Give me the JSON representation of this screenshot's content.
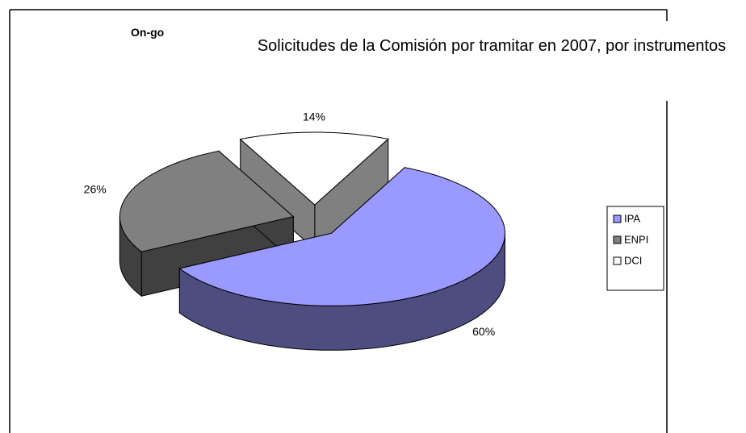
{
  "chart_data": {
    "type": "pie",
    "title": "Solicitudes de la Comisión por tramitar en 2007, por instrumentos",
    "annotation": "On-go",
    "categories": [
      "IPA",
      "ENPI",
      "DCI"
    ],
    "values": [
      60,
      26,
      14
    ],
    "value_labels": [
      "60%",
      "26%",
      "14%"
    ],
    "colors": [
      "#9999ff",
      "#808080",
      "#ffffff"
    ],
    "legend": "right"
  }
}
